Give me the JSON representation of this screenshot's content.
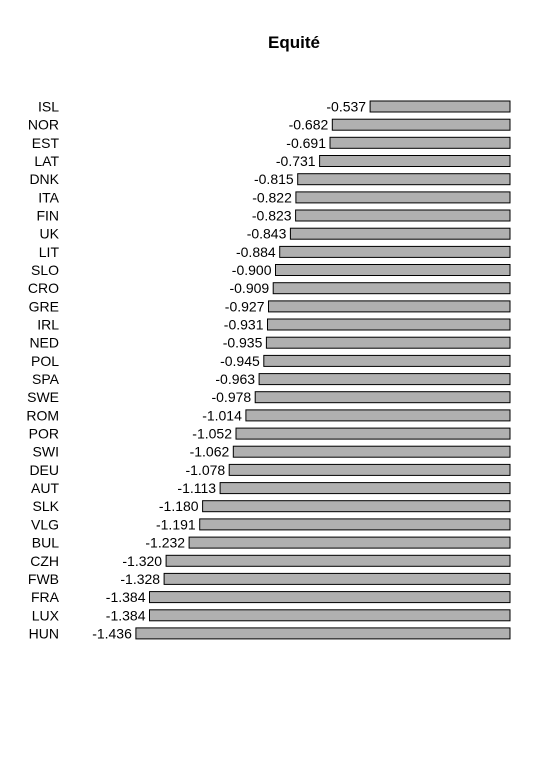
{
  "chart_data": {
    "type": "bar",
    "orientation": "horizontal",
    "title": "Equité",
    "xlabel": "",
    "ylabel": "",
    "grid": false,
    "bar_color": "#b0b0b0",
    "bar_stroke": "#000000",
    "categories": [
      "ISL",
      "NOR",
      "EST",
      "LAT",
      "DNK",
      "ITA",
      "FIN",
      "UK",
      "LIT",
      "SLO",
      "CRO",
      "GRE",
      "IRL",
      "NED",
      "POL",
      "SPA",
      "SWE",
      "ROM",
      "POR",
      "SWI",
      "DEU",
      "AUT",
      "SLK",
      "VLG",
      "BUL",
      "CZH",
      "FWB",
      "FRA",
      "LUX",
      "HUN"
    ],
    "values": [
      -0.537,
      -0.682,
      -0.691,
      -0.731,
      -0.815,
      -0.822,
      -0.823,
      -0.843,
      -0.884,
      -0.9,
      -0.909,
      -0.927,
      -0.931,
      -0.935,
      -0.945,
      -0.963,
      -0.978,
      -1.014,
      -1.052,
      -1.062,
      -1.078,
      -1.113,
      -1.18,
      -1.191,
      -1.232,
      -1.32,
      -1.328,
      -1.384,
      -1.384,
      -1.436
    ],
    "value_labels": [
      "-0.537",
      "-0.682",
      "-0.691",
      "-0.731",
      "-0.815",
      "-0.822",
      "-0.823",
      "-0.843",
      "-0.884",
      "-0.900",
      "-0.909",
      "-0.927",
      "-0.931",
      "-0.935",
      "-0.945",
      "-0.963",
      "-0.978",
      "-1.014",
      "-1.052",
      "-1.062",
      "-1.078",
      "-1.113",
      "-1.180",
      "-1.191",
      "-1.232",
      "-1.320",
      "-1.328",
      "-1.384",
      "-1.384",
      "-1.436"
    ]
  }
}
